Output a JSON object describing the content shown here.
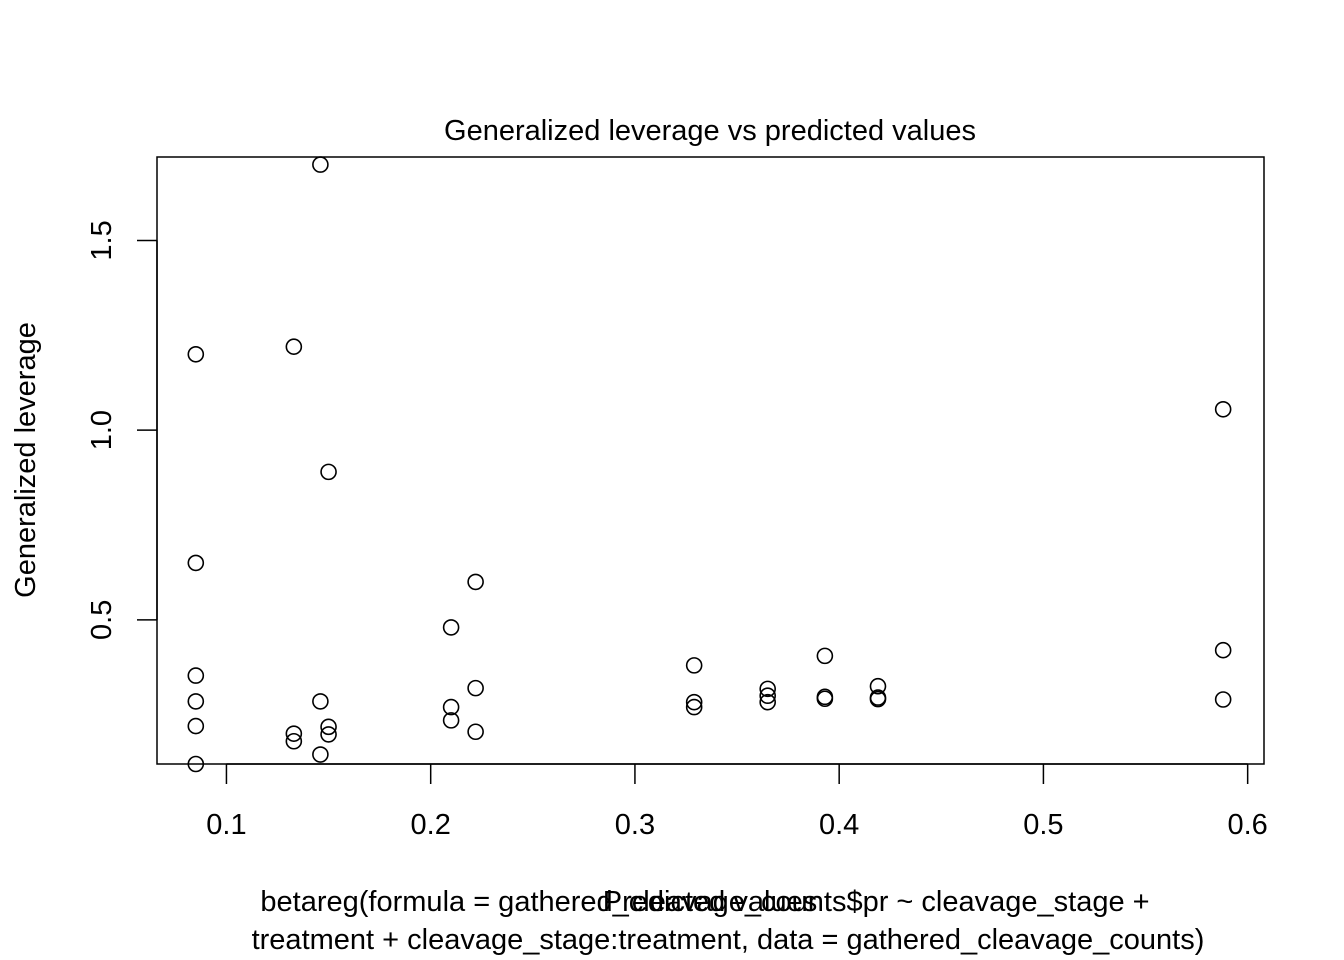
{
  "chart_data": {
    "type": "scatter",
    "title": "Generalized leverage vs predicted values",
    "xlabel": "Predicted values",
    "ylabel": "Generalized leverage",
    "subtitle_lines": [
      "betareg(formula = gathered_cleavage_counts$pr ~ cleavage_stage +",
      "treatment + cleavage_stage:treatment, data = gathered_cleavage_counts)"
    ],
    "xlim": [
      0.066,
      0.608
    ],
    "ylim": [
      0.12,
      1.72
    ],
    "x_ticks": [
      0.1,
      0.2,
      0.3,
      0.4,
      0.5,
      0.6
    ],
    "x_tick_labels": [
      "0.1",
      "0.2",
      "0.3",
      "0.4",
      "0.5",
      "0.6"
    ],
    "y_ticks": [
      0.5,
      1.0,
      1.5
    ],
    "y_tick_labels": [
      "0.5",
      "1.0",
      "1.5"
    ],
    "grid": false,
    "marker": "open-circle",
    "points": [
      {
        "x": 0.085,
        "y": 1.2
      },
      {
        "x": 0.085,
        "y": 0.65
      },
      {
        "x": 0.085,
        "y": 0.353
      },
      {
        "x": 0.085,
        "y": 0.285
      },
      {
        "x": 0.085,
        "y": 0.22
      },
      {
        "x": 0.085,
        "y": 0.12
      },
      {
        "x": 0.133,
        "y": 1.22
      },
      {
        "x": 0.133,
        "y": 0.2
      },
      {
        "x": 0.133,
        "y": 0.18
      },
      {
        "x": 0.146,
        "y": 1.7
      },
      {
        "x": 0.146,
        "y": 0.285
      },
      {
        "x": 0.146,
        "y": 0.145
      },
      {
        "x": 0.15,
        "y": 0.89
      },
      {
        "x": 0.15,
        "y": 0.218
      },
      {
        "x": 0.15,
        "y": 0.198
      },
      {
        "x": 0.21,
        "y": 0.48
      },
      {
        "x": 0.21,
        "y": 0.27
      },
      {
        "x": 0.21,
        "y": 0.235
      },
      {
        "x": 0.222,
        "y": 0.6
      },
      {
        "x": 0.222,
        "y": 0.32
      },
      {
        "x": 0.222,
        "y": 0.205
      },
      {
        "x": 0.329,
        "y": 0.38
      },
      {
        "x": 0.329,
        "y": 0.283
      },
      {
        "x": 0.329,
        "y": 0.27
      },
      {
        "x": 0.365,
        "y": 0.318
      },
      {
        "x": 0.365,
        "y": 0.3
      },
      {
        "x": 0.365,
        "y": 0.283
      },
      {
        "x": 0.393,
        "y": 0.405
      },
      {
        "x": 0.393,
        "y": 0.297
      },
      {
        "x": 0.393,
        "y": 0.292
      },
      {
        "x": 0.419,
        "y": 0.325
      },
      {
        "x": 0.419,
        "y": 0.295
      },
      {
        "x": 0.419,
        "y": 0.291
      },
      {
        "x": 0.588,
        "y": 1.055
      },
      {
        "x": 0.588,
        "y": 0.42
      },
      {
        "x": 0.588,
        "y": 0.29
      }
    ]
  }
}
